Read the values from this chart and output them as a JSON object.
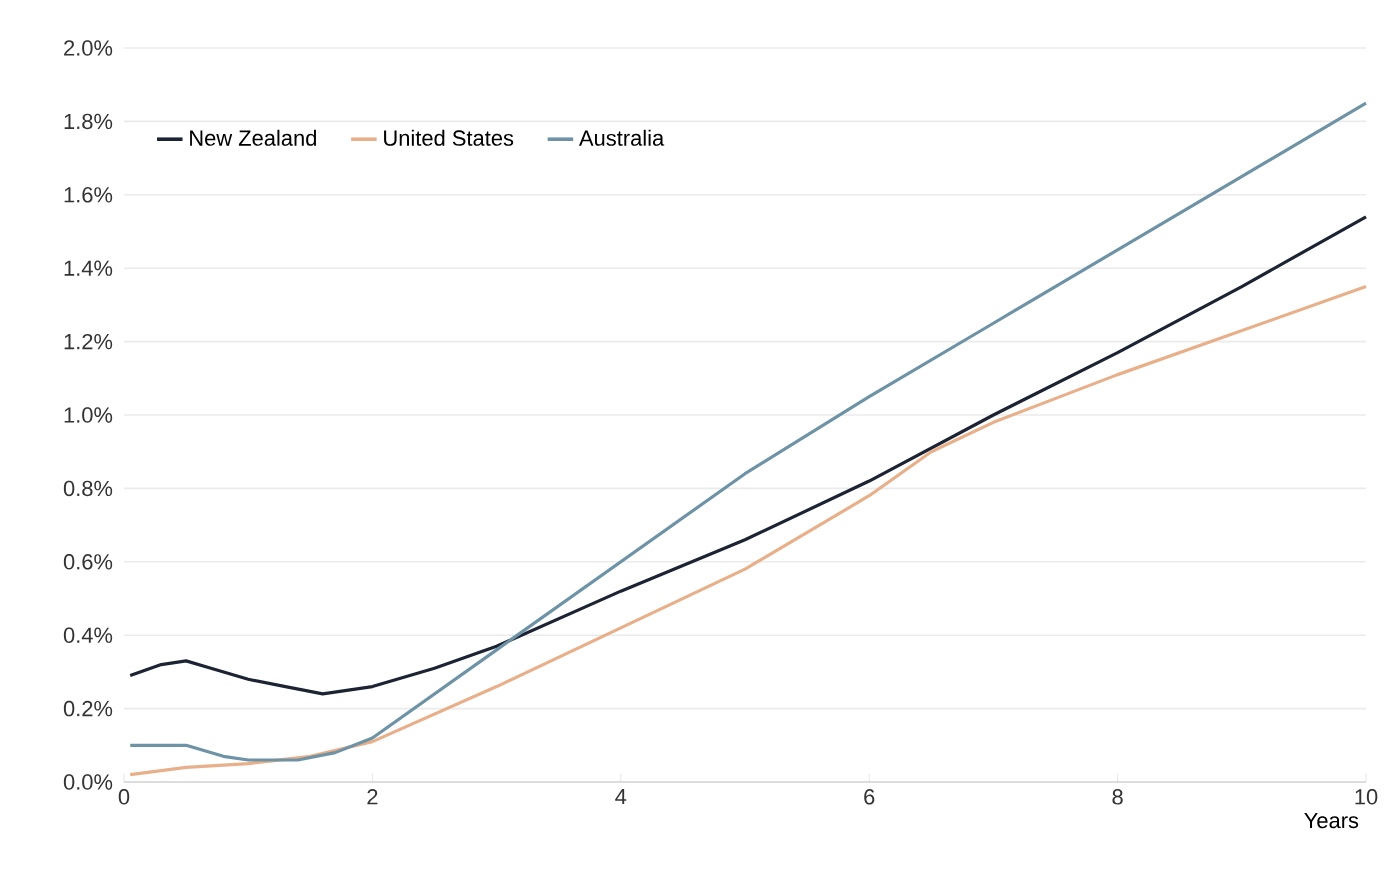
{
  "chart_data": {
    "type": "line",
    "xlabel": "Years",
    "xlim": [
      0,
      10
    ],
    "xticks": [
      0,
      2,
      4,
      6,
      8,
      10
    ],
    "ylim": [
      0,
      2
    ],
    "yticks": [
      {
        "value": 0,
        "label": "0.0%"
      },
      {
        "value": 0.2,
        "label": "0.2%"
      },
      {
        "value": 0.4,
        "label": "0.4%"
      },
      {
        "value": 0.6,
        "label": "0.6%"
      },
      {
        "value": 0.8,
        "label": "0.8%"
      },
      {
        "value": 1.0,
        "label": "1.0%"
      },
      {
        "value": 1.2,
        "label": "1.2%"
      },
      {
        "value": 1.4,
        "label": "1.4%"
      },
      {
        "value": 1.6,
        "label": "1.6%"
      },
      {
        "value": 1.8,
        "label": "1.8%"
      },
      {
        "value": 2.0,
        "label": "2.0%"
      }
    ],
    "grid": "y",
    "legend": "top left",
    "marker": "none",
    "line_style": "solid",
    "series": [
      {
        "name": "New Zealand",
        "color": "#1c2333",
        "x": [
          0.05,
          0.3,
          0.5,
          0.7,
          1.0,
          1.3,
          1.6,
          2.0,
          2.5,
          3,
          4,
          5,
          6,
          7,
          8,
          9,
          10
        ],
        "values": [
          0.29,
          0.32,
          0.33,
          0.31,
          0.28,
          0.26,
          0.24,
          0.26,
          0.31,
          0.37,
          0.52,
          0.66,
          0.82,
          1.0,
          1.17,
          1.35,
          1.54
        ]
      },
      {
        "name": "United States",
        "color": "#e8b08a",
        "x": [
          0.05,
          0.5,
          1,
          1.5,
          2,
          3,
          4,
          5,
          6,
          6.5,
          7,
          8,
          9,
          10
        ],
        "values": [
          0.02,
          0.04,
          0.05,
          0.07,
          0.11,
          0.26,
          0.42,
          0.58,
          0.78,
          0.9,
          0.98,
          1.11,
          1.23,
          1.35
        ]
      },
      {
        "name": "Australia",
        "color": "#6e93a6",
        "x": [
          0.05,
          0.3,
          0.5,
          0.8,
          1.0,
          1.4,
          1.7,
          2,
          3,
          4,
          5,
          6,
          7,
          8,
          9,
          10
        ],
        "values": [
          0.1,
          0.1,
          0.1,
          0.07,
          0.06,
          0.06,
          0.08,
          0.12,
          0.36,
          0.6,
          0.84,
          1.05,
          1.25,
          1.45,
          1.65,
          1.85
        ]
      }
    ]
  }
}
